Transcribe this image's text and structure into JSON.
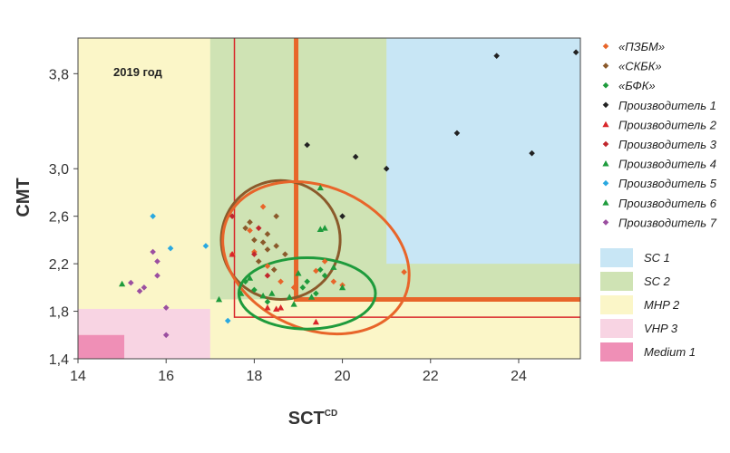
{
  "chart_data": {
    "type": "scatter",
    "xlabel": "SCT",
    "xlabel_sup": "CD",
    "ylabel": "CMT",
    "annotation": "2019 год",
    "xlim": [
      14,
      25.4
    ],
    "ylim": [
      1.4,
      4.1
    ],
    "xticks": [
      14,
      16,
      18,
      20,
      22,
      24
    ],
    "yticks": [
      1.4,
      1.8,
      2.2,
      2.6,
      3.0,
      3.8
    ],
    "ytick_labels": [
      "1,4",
      "1,8",
      "2,2",
      "2,6",
      "3,0",
      "3,8"
    ],
    "grid": false,
    "legend_position": "right",
    "regions": [
      {
        "name": "MHP 2",
        "color": "#fbf6c8",
        "x": [
          14,
          25.4
        ],
        "y": [
          1.4,
          4.1
        ]
      },
      {
        "name": "SC 2",
        "color": "#cfe3b4",
        "x": [
          17,
          25.4
        ],
        "y": [
          1.9,
          4.1
        ]
      },
      {
        "name": "SC 1",
        "color": "#c8e6f5",
        "x": [
          21,
          25.4
        ],
        "y": [
          2.2,
          4.1
        ]
      },
      {
        "name": "VHP 3",
        "color": "#f8d4e3",
        "x": [
          14,
          17
        ],
        "y": [
          1.4,
          1.82
        ]
      },
      {
        "name": "Medium 1",
        "color": "#ef8fb6",
        "x": [
          14,
          15.05
        ],
        "y": [
          1.4,
          1.6
        ]
      }
    ],
    "boundary_lines": [
      {
        "color": "#e8652a",
        "width": 5,
        "points": [
          [
            18.95,
            4.1
          ],
          [
            18.95,
            1.9
          ],
          [
            25.4,
            1.9
          ]
        ]
      },
      {
        "color": "#d9262a",
        "width": 1.5,
        "points": [
          [
            17.55,
            4.1
          ],
          [
            17.55,
            1.75
          ],
          [
            25.4,
            1.75
          ]
        ]
      }
    ],
    "ellipses": [
      {
        "series": "«СКБК»",
        "color": "#8b5a2b",
        "cx": 18.6,
        "cy": 2.4,
        "rx": 1.35,
        "ry": 0.5,
        "rotation_deg": -64
      },
      {
        "series": "«ПЗБМ»",
        "color": "#e8652a",
        "cx": 19.4,
        "cy": 2.25,
        "rx": 2.2,
        "ry": 0.6,
        "rotation_deg": 24
      },
      {
        "series": "«БФК»",
        "color": "#1e9b3c",
        "cx": 19.2,
        "cy": 1.95,
        "rx": 1.55,
        "ry": 0.3,
        "rotation_deg": 0
      }
    ],
    "series": [
      {
        "name": "«ПЗБМ»",
        "color": "#e8652a",
        "marker": "diamond",
        "points": [
          [
            17.9,
            2.48
          ],
          [
            18.0,
            2.3
          ],
          [
            18.3,
            2.18
          ],
          [
            18.6,
            2.05
          ],
          [
            18.9,
            2.0
          ],
          [
            19.4,
            2.14
          ],
          [
            19.6,
            2.22
          ],
          [
            19.8,
            2.05
          ],
          [
            20.0,
            2.02
          ],
          [
            21.4,
            2.13
          ],
          [
            18.2,
            2.68
          ],
          [
            17.5,
            2.28
          ]
        ]
      },
      {
        "name": "«СКБК»",
        "color": "#8b5a2b",
        "marker": "diamond",
        "points": [
          [
            17.8,
            2.5
          ],
          [
            17.9,
            2.55
          ],
          [
            18.0,
            2.4
          ],
          [
            18.2,
            2.38
          ],
          [
            18.3,
            2.45
          ],
          [
            18.5,
            2.6
          ],
          [
            18.5,
            2.35
          ],
          [
            18.7,
            2.28
          ],
          [
            18.3,
            2.32
          ],
          [
            18.1,
            2.22
          ],
          [
            18.45,
            2.15
          ]
        ]
      },
      {
        "name": "«БФК»",
        "color": "#1e9b3c",
        "marker": "diamond",
        "points": [
          [
            17.8,
            2.05
          ],
          [
            18.0,
            1.98
          ],
          [
            18.3,
            1.88
          ],
          [
            19.1,
            2.0
          ],
          [
            19.2,
            2.05
          ],
          [
            19.5,
            2.15
          ],
          [
            19.6,
            2.1
          ],
          [
            19.4,
            1.95
          ]
        ]
      },
      {
        "name": "Производитель 1",
        "color": "#222222",
        "marker": "diamond",
        "points": [
          [
            19.2,
            3.2
          ],
          [
            20.3,
            3.1
          ],
          [
            21.0,
            3.0
          ],
          [
            22.6,
            3.3
          ],
          [
            23.5,
            3.95
          ],
          [
            24.3,
            3.13
          ],
          [
            25.3,
            3.98
          ],
          [
            20.0,
            2.6
          ]
        ]
      },
      {
        "name": "Производитель 2",
        "color": "#d9262a",
        "marker": "triangle",
        "points": [
          [
            17.5,
            2.28
          ],
          [
            18.3,
            1.83
          ],
          [
            18.5,
            1.82
          ],
          [
            18.6,
            1.83
          ],
          [
            19.4,
            1.71
          ]
        ]
      },
      {
        "name": "Производитель 3",
        "color": "#c0272d",
        "marker": "diamond",
        "points": [
          [
            17.5,
            2.6
          ],
          [
            18.1,
            2.5
          ],
          [
            18.0,
            2.28
          ],
          [
            18.3,
            2.1
          ]
        ]
      },
      {
        "name": "Производитель 4",
        "color": "#1e9b3c",
        "marker": "triangle",
        "points": [
          [
            15.0,
            2.03
          ],
          [
            17.2,
            1.9
          ],
          [
            17.9,
            2.08
          ],
          [
            18.4,
            1.95
          ],
          [
            18.8,
            1.92
          ],
          [
            19.0,
            2.12
          ],
          [
            19.5,
            2.49
          ],
          [
            19.6,
            2.5
          ],
          [
            19.5,
            2.84
          ],
          [
            19.8,
            2.17
          ],
          [
            20.0,
            2.0
          ]
        ]
      },
      {
        "name": "Производитель 5",
        "color": "#29a8e0",
        "marker": "diamond",
        "points": [
          [
            15.7,
            2.6
          ],
          [
            16.1,
            2.33
          ],
          [
            16.9,
            2.35
          ],
          [
            17.4,
            1.72
          ]
        ]
      },
      {
        "name": "Производитель 6",
        "color": "#1e9b3c",
        "marker": "triangle",
        "points": [
          [
            17.7,
            1.95
          ],
          [
            18.2,
            1.93
          ],
          [
            18.9,
            1.86
          ],
          [
            19.3,
            1.92
          ]
        ]
      },
      {
        "name": "Производитель 7",
        "color": "#9b4fa0",
        "marker": "diamond",
        "points": [
          [
            15.2,
            2.04
          ],
          [
            15.4,
            1.97
          ],
          [
            15.5,
            2.0
          ],
          [
            15.7,
            2.3
          ],
          [
            15.8,
            2.1
          ],
          [
            16.0,
            1.83
          ],
          [
            16.0,
            1.6
          ],
          [
            15.8,
            2.22
          ]
        ]
      }
    ],
    "legend_regions": [
      {
        "name": "SC 1",
        "color": "#c8e6f5"
      },
      {
        "name": "SC 2",
        "color": "#cfe3b4"
      },
      {
        "name": "MHP 2",
        "color": "#fbf6c8"
      },
      {
        "name": "VHP 3",
        "color": "#f8d4e3"
      },
      {
        "name": "Medium 1",
        "color": "#ef8fb6"
      }
    ]
  }
}
